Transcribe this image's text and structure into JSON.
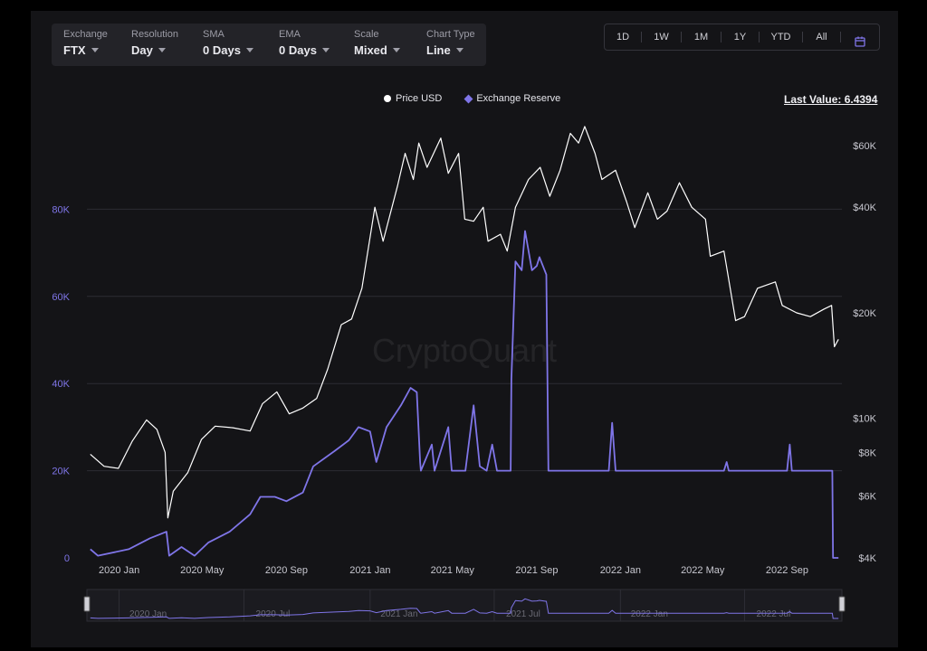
{
  "controls": [
    {
      "label": "Exchange",
      "value": "FTX"
    },
    {
      "label": "Resolution",
      "value": "Day"
    },
    {
      "label": "SMA",
      "value": "0 Days"
    },
    {
      "label": "EMA",
      "value": "0 Days"
    },
    {
      "label": "Scale",
      "value": "Mixed"
    },
    {
      "label": "Chart Type",
      "value": "Line"
    }
  ],
  "ranges": [
    "1D",
    "1W",
    "1M",
    "1Y",
    "YTD",
    "All"
  ],
  "legend": {
    "price": "Price USD",
    "reserve": "Exchange Reserve"
  },
  "last_value": "Last Value: 6.4394",
  "watermark": "CryptoQuant",
  "colors": {
    "price": "#ffffff",
    "reserve": "#7f75e8",
    "background": "#141417",
    "accent": "#7f75e8"
  },
  "chart_data": {
    "type": "line",
    "x_tick_labels": [
      "2020 Jan",
      "2020 May",
      "2020 Sep",
      "2021 Jan",
      "2021 May",
      "2021 Sep",
      "2022 Jan",
      "2022 May",
      "2022 Sep"
    ],
    "left_axis": {
      "ticks": [
        "0",
        "20K",
        "40K",
        "60K",
        "80K"
      ],
      "range": [
        0,
        100000
      ],
      "series": "Exchange Reserve"
    },
    "right_axis": {
      "ticks": [
        "$4K",
        "$6K",
        "$8K",
        "$10K",
        "$20K",
        "$40K",
        "$60K"
      ],
      "scale": "log",
      "range": [
        4000,
        70000
      ],
      "series": "Price USD"
    },
    "navigator_labels": [
      "2020 Jan",
      "2020 Jul",
      "2021 Jan",
      "2021 Jul",
      "2022 Jan",
      "2022 Jul"
    ],
    "series": [
      {
        "name": "Price USD",
        "axis": "right",
        "points": [
          [
            "2019-11-20",
            7900
          ],
          [
            "2019-12-10",
            7300
          ],
          [
            "2019-12-31",
            7200
          ],
          [
            "2020-01-20",
            8600
          ],
          [
            "2020-02-10",
            9900
          ],
          [
            "2020-02-25",
            9300
          ],
          [
            "2020-03-08",
            8000
          ],
          [
            "2020-03-12",
            5200
          ],
          [
            "2020-03-20",
            6200
          ],
          [
            "2020-04-10",
            7000
          ],
          [
            "2020-04-30",
            8700
          ],
          [
            "2020-05-20",
            9500
          ],
          [
            "2020-06-15",
            9400
          ],
          [
            "2020-07-10",
            9200
          ],
          [
            "2020-07-28",
            11000
          ],
          [
            "2020-08-18",
            11900
          ],
          [
            "2020-09-05",
            10300
          ],
          [
            "2020-09-25",
            10700
          ],
          [
            "2020-10-15",
            11400
          ],
          [
            "2020-10-31",
            13800
          ],
          [
            "2020-11-20",
            18500
          ],
          [
            "2020-12-05",
            19200
          ],
          [
            "2020-12-20",
            23500
          ],
          [
            "2021-01-08",
            40000
          ],
          [
            "2021-01-20",
            32000
          ],
          [
            "2021-02-10",
            46000
          ],
          [
            "2021-02-21",
            57000
          ],
          [
            "2021-03-05",
            48000
          ],
          [
            "2021-03-13",
            61000
          ],
          [
            "2021-03-25",
            52000
          ],
          [
            "2021-04-14",
            63000
          ],
          [
            "2021-04-25",
            50000
          ],
          [
            "2021-05-10",
            57000
          ],
          [
            "2021-05-19",
            37000
          ],
          [
            "2021-06-01",
            36500
          ],
          [
            "2021-06-15",
            40000
          ],
          [
            "2021-06-22",
            32000
          ],
          [
            "2021-07-10",
            33500
          ],
          [
            "2021-07-20",
            30000
          ],
          [
            "2021-08-01",
            40000
          ],
          [
            "2021-08-20",
            48000
          ],
          [
            "2021-09-06",
            52000
          ],
          [
            "2021-09-20",
            43000
          ],
          [
            "2021-10-05",
            51000
          ],
          [
            "2021-10-20",
            65000
          ],
          [
            "2021-11-01",
            61000
          ],
          [
            "2021-11-10",
            68000
          ],
          [
            "2021-11-25",
            57000
          ],
          [
            "2021-12-05",
            48000
          ],
          [
            "2021-12-25",
            51000
          ],
          [
            "2022-01-10",
            41500
          ],
          [
            "2022-01-22",
            35000
          ],
          [
            "2022-02-10",
            44000
          ],
          [
            "2022-02-24",
            37000
          ],
          [
            "2022-03-10",
            39000
          ],
          [
            "2022-03-28",
            47000
          ],
          [
            "2022-04-15",
            40000
          ],
          [
            "2022-05-05",
            37000
          ],
          [
            "2022-05-12",
            29000
          ],
          [
            "2022-06-01",
            30000
          ],
          [
            "2022-06-18",
            19000
          ],
          [
            "2022-07-01",
            19500
          ],
          [
            "2022-07-20",
            23500
          ],
          [
            "2022-08-15",
            24500
          ],
          [
            "2022-08-25",
            21000
          ],
          [
            "2022-09-15",
            20000
          ],
          [
            "2022-10-05",
            19500
          ],
          [
            "2022-10-25",
            20500
          ],
          [
            "2022-11-05",
            21000
          ],
          [
            "2022-11-09",
            16000
          ],
          [
            "2022-11-15",
            16800
          ]
        ]
      },
      {
        "name": "Exchange Reserve",
        "axis": "left",
        "points": [
          [
            "2019-11-20",
            2000
          ],
          [
            "2019-12-01",
            500
          ],
          [
            "2020-01-15",
            2000
          ],
          [
            "2020-02-15",
            4500
          ],
          [
            "2020-03-10",
            6000
          ],
          [
            "2020-03-14",
            500
          ],
          [
            "2020-04-01",
            2500
          ],
          [
            "2020-04-20",
            500
          ],
          [
            "2020-05-10",
            3500
          ],
          [
            "2020-06-10",
            6000
          ],
          [
            "2020-07-10",
            10000
          ],
          [
            "2020-07-25",
            14000
          ],
          [
            "2020-08-15",
            14000
          ],
          [
            "2020-09-01",
            13000
          ],
          [
            "2020-09-25",
            15000
          ],
          [
            "2020-10-10",
            21000
          ],
          [
            "2020-11-10",
            24500
          ],
          [
            "2020-12-01",
            27000
          ],
          [
            "2020-12-15",
            30000
          ],
          [
            "2021-01-01",
            29000
          ],
          [
            "2021-01-10",
            22000
          ],
          [
            "2021-01-25",
            30000
          ],
          [
            "2021-02-15",
            35000
          ],
          [
            "2021-03-01",
            39000
          ],
          [
            "2021-03-10",
            38000
          ],
          [
            "2021-03-15",
            22000
          ],
          [
            "2021-03-16",
            20000
          ],
          [
            "2021-04-01",
            26000
          ],
          [
            "2021-04-05",
            20000
          ],
          [
            "2021-04-25",
            30000
          ],
          [
            "2021-04-30",
            20000
          ],
          [
            "2021-05-20",
            20000
          ],
          [
            "2021-06-01",
            35000
          ],
          [
            "2021-06-10",
            21000
          ],
          [
            "2021-06-20",
            20000
          ],
          [
            "2021-06-28",
            26000
          ],
          [
            "2021-07-05",
            20000
          ],
          [
            "2021-07-25",
            20000
          ],
          [
            "2021-07-26",
            41000
          ],
          [
            "2021-08-01",
            68000
          ],
          [
            "2021-08-10",
            66000
          ],
          [
            "2021-08-15",
            75000
          ],
          [
            "2021-08-25",
            66000
          ],
          [
            "2021-09-01",
            67000
          ],
          [
            "2021-09-05",
            69000
          ],
          [
            "2021-09-15",
            65000
          ],
          [
            "2021-09-18",
            20000
          ],
          [
            "2021-12-15",
            20000
          ],
          [
            "2021-12-20",
            31000
          ],
          [
            "2021-12-25",
            20000
          ],
          [
            "2022-06-01",
            20000
          ],
          [
            "2022-06-05",
            22000
          ],
          [
            "2022-06-08",
            20000
          ],
          [
            "2022-09-01",
            20000
          ],
          [
            "2022-09-05",
            26000
          ],
          [
            "2022-09-08",
            20000
          ],
          [
            "2022-11-06",
            20000
          ],
          [
            "2022-11-07",
            0
          ],
          [
            "2022-11-15",
            0
          ]
        ]
      }
    ]
  }
}
